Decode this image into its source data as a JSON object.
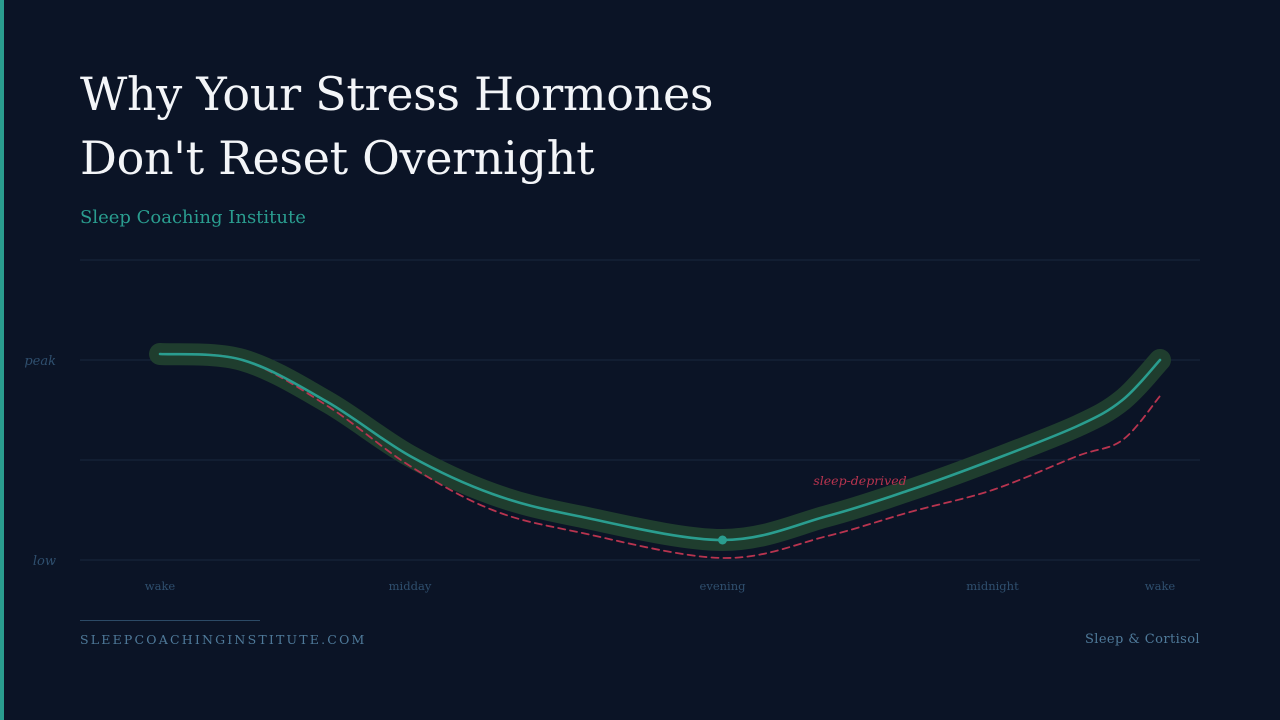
{
  "header": {
    "title_lines": [
      "Why Your Stress Hormones",
      "Don't Reset Overnight"
    ],
    "subtitle": "Sleep Coaching Institute"
  },
  "footer": {
    "site": "SLEEPCOACHINGINSTITUTE.COM",
    "topic": "Sleep & Cortisol"
  },
  "colors": {
    "background": "#0b1426",
    "accent": "#2a9d8f",
    "healthy_line": "#2a9d8f",
    "healthy_glow": "#1f3d2e",
    "deprived_line": "#b8344f",
    "grid": "#18283d",
    "muted_text": "#2f4f6e"
  },
  "chart_data": {
    "type": "line",
    "title": "",
    "xlabel": "",
    "ylabel": "",
    "x_range": [
      0,
      4
    ],
    "x_ticks": [
      {
        "x": 0,
        "label": "wake"
      },
      {
        "x": 1,
        "label": "midday"
      },
      {
        "x": 2.25,
        "label": "evening"
      },
      {
        "x": 3.33,
        "label": "midnight"
      },
      {
        "x": 4,
        "label": "wake"
      }
    ],
    "y_range": [
      0,
      1
    ],
    "y_ticks": [
      {
        "y": 1,
        "label": "peak"
      },
      {
        "y": 0,
        "label": "low"
      }
    ],
    "grid": true,
    "series": [
      {
        "name": "",
        "style": "solid-glow",
        "points": [
          {
            "x": 0,
            "y": 1.03
          },
          {
            "x": 0.33,
            "y": 1.0
          },
          {
            "x": 0.67,
            "y": 0.79
          },
          {
            "x": 1,
            "y": 0.52
          },
          {
            "x": 1.33,
            "y": 0.33
          },
          {
            "x": 1.67,
            "y": 0.22
          },
          {
            "x": 2.25,
            "y": 0.1
          },
          {
            "x": 2.67,
            "y": 0.22
          },
          {
            "x": 3.0,
            "y": 0.35
          },
          {
            "x": 3.33,
            "y": 0.5
          },
          {
            "x": 3.67,
            "y": 0.67
          },
          {
            "x": 3.85,
            "y": 0.8
          },
          {
            "x": 4,
            "y": 1.0
          }
        ],
        "marker": {
          "x": 2.25,
          "y": 0.1
        }
      },
      {
        "name": "sleep-deprived",
        "style": "dashed",
        "points": [
          {
            "x": 0,
            "y": 1.03
          },
          {
            "x": 0.33,
            "y": 1.0
          },
          {
            "x": 0.67,
            "y": 0.77
          },
          {
            "x": 1,
            "y": 0.47
          },
          {
            "x": 1.33,
            "y": 0.25
          },
          {
            "x": 1.67,
            "y": 0.14
          },
          {
            "x": 2.25,
            "y": 0.01
          },
          {
            "x": 2.67,
            "y": 0.12
          },
          {
            "x": 3.0,
            "y": 0.24
          },
          {
            "x": 3.33,
            "y": 0.35
          },
          {
            "x": 3.67,
            "y": 0.52
          },
          {
            "x": 3.85,
            "y": 0.6
          },
          {
            "x": 4,
            "y": 0.82
          }
        ],
        "label": "sleep-deprived"
      }
    ]
  }
}
